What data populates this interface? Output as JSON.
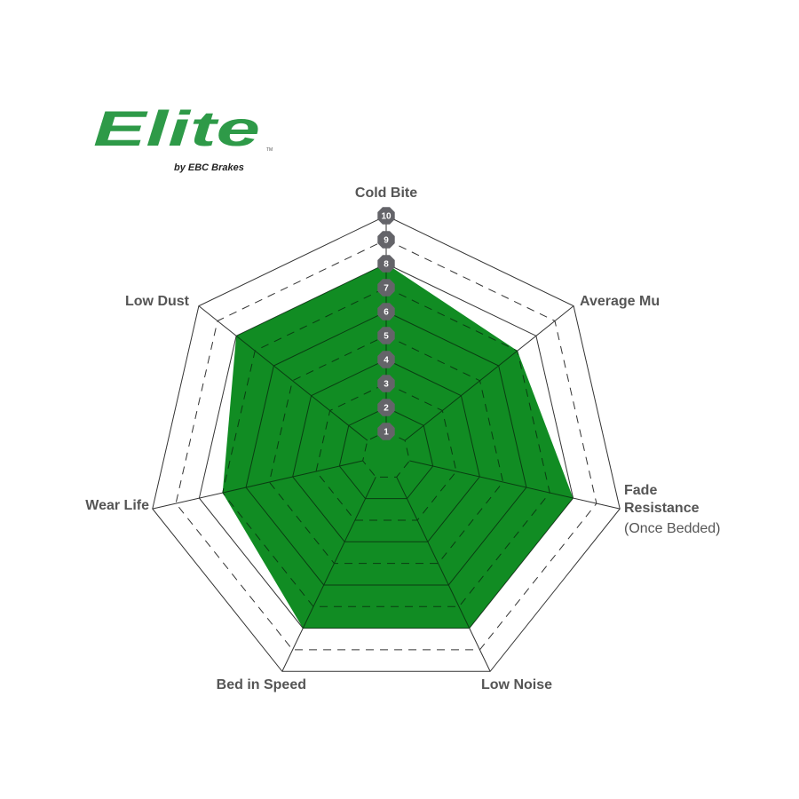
{
  "logo": {
    "brand": "Elite",
    "tagline": "by EBC Brakes",
    "mark": "TM",
    "color": "#2e9a48"
  },
  "chart_data": {
    "type": "radar",
    "title": "",
    "categories": [
      "Cold Bite",
      "Average Mu",
      "Fade Resistance",
      "Low Noise",
      "Bed in Speed",
      "Wear Life",
      "Low Dust"
    ],
    "category_notes": {
      "Fade Resistance": "(Once Bedded)"
    },
    "values": [
      8,
      7,
      8,
      8,
      8,
      7,
      8
    ],
    "rlim": [
      0,
      10
    ],
    "ticks": [
      "1",
      "2",
      "3",
      "4",
      "5",
      "6",
      "7",
      "8",
      "9",
      "10"
    ],
    "grid": true,
    "fill_color": "#118c23",
    "tick_badge_color": "#646469"
  }
}
